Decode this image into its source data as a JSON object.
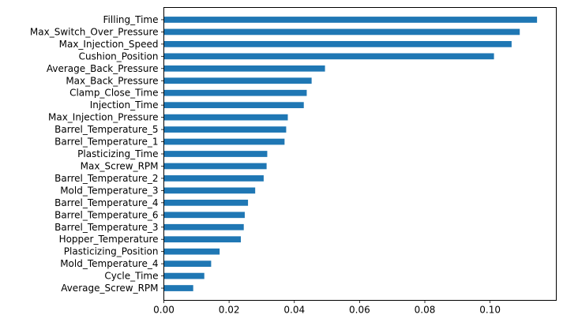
{
  "chart_data": {
    "type": "bar",
    "orientation": "horizontal",
    "title": "",
    "xlabel": "",
    "ylabel": "",
    "xlim": [
      0,
      0.1203
    ],
    "xticks": [
      0.0,
      0.02,
      0.04,
      0.06,
      0.08,
      0.1
    ],
    "xtick_labels": [
      "0.00",
      "0.02",
      "0.04",
      "0.06",
      "0.08",
      "0.10"
    ],
    "grid": false,
    "legend": "none",
    "bar_color": "#1f77b4",
    "categories": [
      "Filling_Time",
      "Max_Switch_Over_Pressure",
      "Max_Injection_Speed",
      "Cushion_Position",
      "Average_Back_Pressure",
      "Max_Back_Pressure",
      "Clamp_Close_Time",
      "Injection_Time",
      "Max_Injection_Pressure",
      "Barrel_Temperature_5",
      "Barrel_Temperature_1",
      "Plasticizing_Time",
      "Max_Screw_RPM",
      "Barrel_Temperature_2",
      "Mold_Temperature_3",
      "Barrel_Temperature_4",
      "Barrel_Temperature_6",
      "Barrel_Temperature_3",
      "Hopper_Temperature",
      "Plasticizing_Position",
      "Mold_Temperature_4",
      "Cycle_Time",
      "Average_Screw_RPM"
    ],
    "values": [
      0.1144,
      0.1091,
      0.1066,
      0.1012,
      0.0494,
      0.0453,
      0.0438,
      0.0429,
      0.038,
      0.0375,
      0.037,
      0.0317,
      0.0315,
      0.0306,
      0.028,
      0.0258,
      0.0248,
      0.0245,
      0.0236,
      0.0171,
      0.0145,
      0.0124,
      0.009
    ]
  }
}
